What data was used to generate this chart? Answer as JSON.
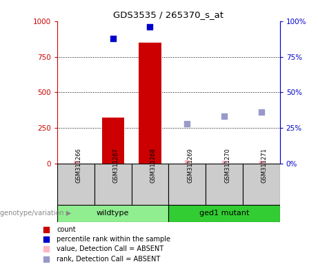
{
  "title": "GDS3535 / 265370_s_at",
  "samples": [
    "GSM311266",
    "GSM311267",
    "GSM311268",
    "GSM311269",
    "GSM311270",
    "GSM311271"
  ],
  "bar_values": [
    null,
    325,
    850,
    null,
    null,
    null
  ],
  "bar_color": "#CC0000",
  "blue_squares": [
    null,
    880,
    960,
    null,
    null,
    null
  ],
  "blue_color": "#0000CC",
  "pink_values": [
    5,
    null,
    null,
    8,
    5,
    5
  ],
  "pink_color": "#FFB6C1",
  "lavender_values": [
    null,
    null,
    null,
    280,
    335,
    360
  ],
  "lavender_color": "#9999CC",
  "ylim_left": [
    0,
    1000
  ],
  "ylim_right": [
    0,
    100
  ],
  "yticks_left": [
    0,
    250,
    500,
    750,
    1000
  ],
  "yticks_right": [
    0,
    25,
    50,
    75,
    100
  ],
  "ytick_labels_left": [
    "0",
    "250",
    "500",
    "750",
    "1000"
  ],
  "ytick_labels_right": [
    "0%",
    "25%",
    "50%",
    "75%",
    "100%"
  ],
  "left_axis_color": "#CC0000",
  "right_axis_color": "#0000CC",
  "bg_color": "#FFFFFF",
  "plot_bg": "#FFFFFF",
  "grid_color": "black",
  "grid_levels": [
    250,
    500,
    750
  ],
  "wildtype_range": [
    0,
    2
  ],
  "mutant_range": [
    3,
    5
  ],
  "wildtype_label": "wildtype",
  "mutant_label": "ged1 mutant",
  "wildtype_color": "#90EE90",
  "mutant_color": "#32CD32",
  "sample_box_color": "#CCCCCC",
  "group_label": "genotype/variation",
  "legend_items": [
    {
      "label": "count",
      "color": "#CC0000"
    },
    {
      "label": "percentile rank within the sample",
      "color": "#0000CC"
    },
    {
      "label": "value, Detection Call = ABSENT",
      "color": "#FFB6C1"
    },
    {
      "label": "rank, Detection Call = ABSENT",
      "color": "#9999CC"
    }
  ]
}
